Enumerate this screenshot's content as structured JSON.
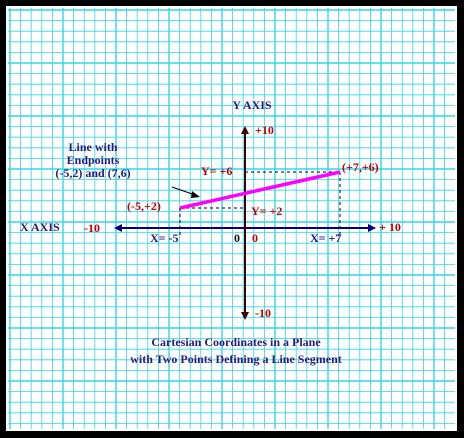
{
  "axes": {
    "y_title": "Y AXIS",
    "x_title": "X AXIS",
    "x_min": "-10",
    "x_max": "+ 10",
    "y_max": "+10",
    "y_min": "-10",
    "origin_x": "0",
    "origin_y": "0"
  },
  "points": [
    {
      "label": "(-5,+2)"
    },
    {
      "label": "(+7,+6)"
    }
  ],
  "guides": [
    "X= -5",
    "X= +7",
    "Y= +6",
    "Y= +2"
  ],
  "note": [
    "Line with",
    "Endpoints",
    "(-5,2) and (7,6)"
  ],
  "caption": [
    "Cartesian Coordinates in a Plane",
    "with Two Points Defining a Line Segment"
  ]
}
